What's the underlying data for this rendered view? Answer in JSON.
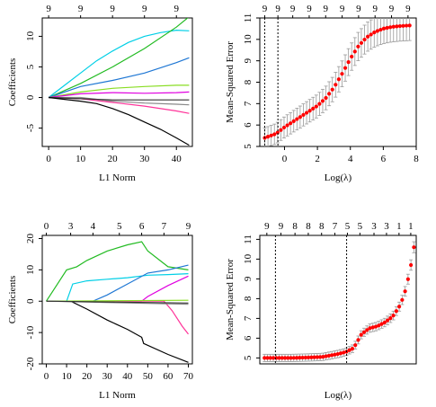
{
  "chart_data": [
    {
      "type": "line",
      "panel": "top-left",
      "xlabel": "L1 Norm",
      "ylabel": "Coefficients",
      "xlim": [
        -2,
        45
      ],
      "ylim": [
        -8,
        13
      ],
      "xticks": [
        0,
        10,
        20,
        30,
        40
      ],
      "yticks": [
        -5,
        0,
        5,
        10
      ],
      "top_ticks": [
        0,
        10,
        20,
        30,
        40
      ],
      "top_labels": [
        "9",
        "9",
        "9",
        "9",
        "9"
      ],
      "grid": false,
      "series": [
        {
          "color": "#00cfe6",
          "x": [
            0,
            5,
            10,
            15,
            20,
            25,
            30,
            35,
            40,
            44
          ],
          "y": [
            0,
            2,
            4,
            6,
            7.6,
            9,
            10,
            10.6,
            11,
            10.9
          ]
        },
        {
          "color": "#22bb22",
          "x": [
            0,
            10,
            20,
            30,
            40,
            44
          ],
          "y": [
            0,
            2.3,
            5,
            8,
            11.5,
            13.2
          ]
        },
        {
          "color": "#1f77d4",
          "x": [
            0,
            10,
            20,
            30,
            40,
            44
          ],
          "y": [
            0,
            1.8,
            2.8,
            4,
            5.7,
            6.5
          ]
        },
        {
          "color": "#88dd22",
          "x": [
            0,
            10,
            20,
            30,
            40,
            44
          ],
          "y": [
            0,
            0.9,
            1.5,
            1.8,
            2,
            2
          ]
        },
        {
          "color": "#e000e0",
          "x": [
            0,
            10,
            20,
            30,
            40,
            44
          ],
          "y": [
            0,
            0.6,
            0.8,
            0.7,
            0.8,
            0.9
          ]
        },
        {
          "color": "#ff3399",
          "x": [
            0,
            10,
            20,
            30,
            40,
            44
          ],
          "y": [
            0,
            -0.2,
            -0.8,
            -1.4,
            -2.2,
            -2.6
          ]
        },
        {
          "color": "#888888",
          "x": [
            0,
            10,
            20,
            30,
            40,
            44
          ],
          "y": [
            0,
            0,
            -0.6,
            -0.9,
            -1.1,
            -1.2
          ]
        },
        {
          "color": "#333333",
          "x": [
            0,
            10,
            20,
            30,
            40,
            44
          ],
          "y": [
            0,
            -0.2,
            -0.4,
            -0.4,
            -0.4,
            -0.4
          ]
        },
        {
          "color": "#000000",
          "x": [
            0,
            5,
            10,
            15,
            20,
            25,
            30,
            35,
            40,
            44
          ],
          "y": [
            0,
            -0.3,
            -0.6,
            -1,
            -1.8,
            -2.8,
            -4,
            -5.2,
            -6.6,
            -7.8
          ]
        }
      ]
    },
    {
      "type": "errorbar",
      "panel": "top-right",
      "xlabel": "Log(λ)",
      "ylabel": "Mean-Squared Error",
      "xlim": [
        -1.5,
        8
      ],
      "ylim": [
        5,
        11
      ],
      "xticks": [
        0,
        2,
        4,
        6,
        8
      ],
      "yticks": [
        5,
        6,
        7,
        8,
        9,
        10,
        11
      ],
      "top_ticks": [
        -1.2,
        -0.4,
        0.5,
        1.5,
        2.5,
        3.5,
        4.5,
        5.5,
        6.5,
        7.5
      ],
      "top_labels": [
        "9",
        "9",
        "9",
        "9",
        "9",
        "9",
        "9",
        "9",
        "9",
        "9"
      ],
      "vlines": [
        -1.2,
        -0.4
      ],
      "point_color": "#ff0000",
      "error_color": "#999999",
      "curve": {
        "x": [
          -1.2,
          -0.5,
          0,
          0.5,
          1,
          1.5,
          2,
          2.5,
          3,
          3.5,
          4,
          4.5,
          5,
          5.5,
          6,
          6.5,
          7,
          7.6
        ],
        "y": [
          5.4,
          5.6,
          5.9,
          6.15,
          6.4,
          6.65,
          6.9,
          7.25,
          7.75,
          8.4,
          9.1,
          9.7,
          10.1,
          10.35,
          10.5,
          10.58,
          10.62,
          10.65
        ],
        "err": 0.45
      }
    },
    {
      "type": "line",
      "panel": "bottom-left",
      "xlabel": "L1 Norm",
      "ylabel": "Coefficients",
      "xlim": [
        -2,
        72
      ],
      "ylim": [
        -20,
        21
      ],
      "xticks": [
        0,
        10,
        20,
        30,
        40,
        50,
        60,
        70
      ],
      "yticks": [
        -20,
        -10,
        0,
        10,
        20
      ],
      "top_ticks": [
        0,
        12,
        23,
        36,
        47,
        58,
        70
      ],
      "top_labels": [
        "0",
        "3",
        "4",
        "5",
        "6",
        "7",
        "9"
      ],
      "grid": false,
      "series": [
        {
          "color": "#22bb22",
          "x": [
            0,
            2,
            10,
            15,
            20,
            30,
            40,
            47,
            50,
            60,
            70
          ],
          "y": [
            0,
            2,
            10,
            11,
            13,
            16,
            18,
            19,
            16,
            11,
            10
          ]
        },
        {
          "color": "#00cfe6",
          "x": [
            0,
            10,
            13,
            20,
            30,
            40,
            50,
            60,
            70
          ],
          "y": [
            0,
            0,
            5.5,
            6.5,
            7,
            7.5,
            8.3,
            8.5,
            8.8
          ]
        },
        {
          "color": "#1f77d4",
          "x": [
            0,
            23,
            30,
            40,
            50,
            60,
            70
          ],
          "y": [
            0,
            0,
            2,
            5.5,
            9,
            10,
            11.5
          ]
        },
        {
          "color": "#e000e0",
          "x": [
            0,
            47,
            50,
            60,
            70
          ],
          "y": [
            0,
            0,
            1.5,
            5,
            8
          ]
        },
        {
          "color": "#ff3399",
          "x": [
            0,
            58,
            62,
            67,
            70
          ],
          "y": [
            0,
            0,
            -3,
            -8,
            -10.5
          ]
        },
        {
          "color": "#000000",
          "x": [
            0,
            12,
            20,
            30,
            40,
            47,
            48,
            60,
            70
          ],
          "y": [
            0,
            0,
            -2.5,
            -6,
            -9,
            -11.5,
            -13.5,
            -17,
            -19.5
          ]
        },
        {
          "color": "#88dd22",
          "x": [
            0,
            70
          ],
          "y": [
            0,
            0.3
          ]
        },
        {
          "color": "#888888",
          "x": [
            0,
            70
          ],
          "y": [
            0,
            -1
          ]
        },
        {
          "color": "#333333",
          "x": [
            0,
            70
          ],
          "y": [
            0,
            -0.6
          ]
        }
      ]
    },
    {
      "type": "errorbar",
      "panel": "bottom-right",
      "xlabel": "Log(λ)",
      "ylabel": "Mean-Squared Error",
      "xlim": [
        0,
        10
      ],
      "ylim": [
        4.7,
        11.2
      ],
      "xticks": [],
      "yticks": [
        5,
        6,
        7,
        8,
        9,
        10,
        11
      ],
      "top_ticks": [
        0.45,
        1.35,
        2.25,
        3.1,
        3.95,
        4.8,
        5.6,
        6.4,
        7.3,
        8.1,
        8.9,
        9.65
      ],
      "top_labels": [
        "9",
        "9",
        "8",
        "8",
        "8",
        "7",
        "5",
        "5",
        "3",
        "3",
        "1",
        "1"
      ],
      "vlines": [
        1.0,
        5.55
      ],
      "point_color": "#ff0000",
      "error_color": "#999999",
      "curve": {
        "x": [
          0.3,
          1,
          2,
          3,
          4,
          5,
          5.5,
          6,
          6.5,
          7,
          7.5,
          8,
          8.5,
          9,
          9.3,
          9.6,
          9.85
        ],
        "y": [
          5.0,
          5.0,
          5.0,
          5.02,
          5.05,
          5.2,
          5.3,
          5.5,
          6.2,
          6.5,
          6.6,
          6.8,
          7.1,
          7.7,
          8.4,
          9.4,
          10.6
        ],
        "err": 0.18
      }
    }
  ]
}
